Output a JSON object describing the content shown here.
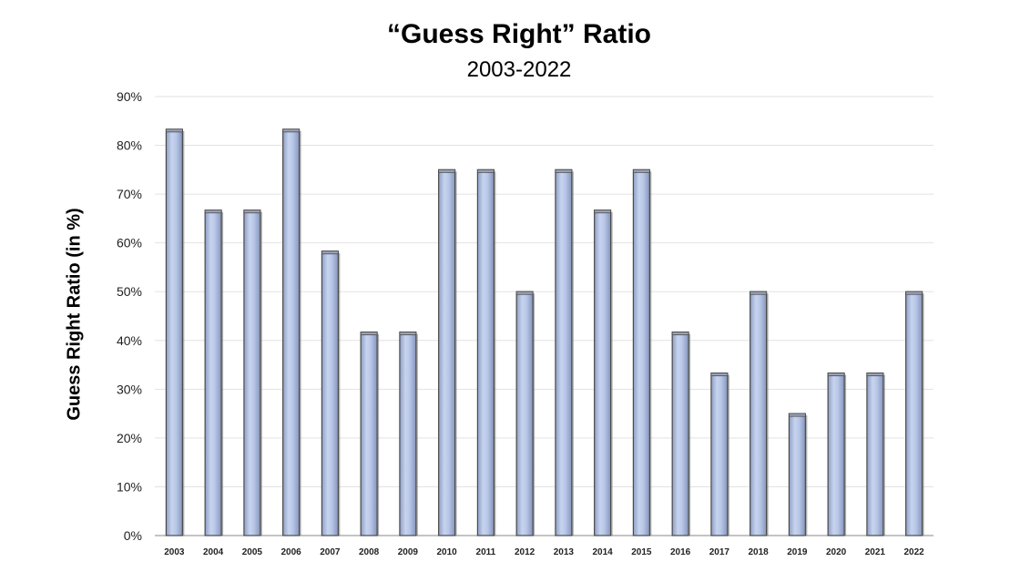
{
  "chart_data": {
    "type": "bar",
    "title": "“Guess Right” Ratio",
    "subtitle": "2003-2022",
    "ylabel": "Guess Right Ratio (in %)",
    "xlabel": "",
    "categories": [
      "2003",
      "2004",
      "2005",
      "2006",
      "2007",
      "2008",
      "2009",
      "2010",
      "2011",
      "2012",
      "2013",
      "2014",
      "2015",
      "2016",
      "2017",
      "2018",
      "2019",
      "2020",
      "2021",
      "2022"
    ],
    "values": [
      83.3,
      66.7,
      66.7,
      83.3,
      58.3,
      41.7,
      41.7,
      75.0,
      75.0,
      50.0,
      75.0,
      66.7,
      75.0,
      41.7,
      33.3,
      50.0,
      25.0,
      33.3,
      33.3,
      50.0
    ],
    "ylim": [
      0,
      90
    ],
    "yticks": [
      0,
      10,
      20,
      30,
      40,
      50,
      60,
      70,
      80,
      90
    ],
    "ytick_labels": [
      "0%",
      "10%",
      "20%",
      "30%",
      "40%",
      "50%",
      "60%",
      "70%",
      "80%",
      "90%"
    ],
    "grid": true,
    "bar_color": "#b8c8e8",
    "bar_edge_color": "#4a4a4a"
  }
}
